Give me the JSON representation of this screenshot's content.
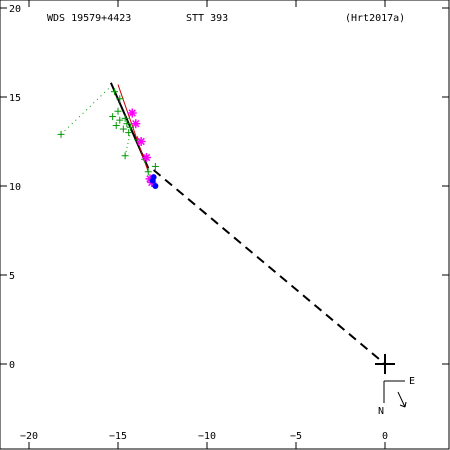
{
  "chart_data": {
    "type": "scatter",
    "header": {
      "left": "WDS 19579+4423",
      "center": "STT 393",
      "right": "(Hrt2017a)"
    },
    "x_axis": {
      "range": [
        -22,
        3.5
      ],
      "ticks": [
        -20,
        -15,
        -10,
        -5,
        0
      ],
      "tick_labels": [
        "−20",
        "−15",
        "−10",
        "−5",
        "0"
      ]
    },
    "y_axis": {
      "range": [
        -4,
        20
      ],
      "ticks": [
        0,
        5,
        10,
        15,
        20
      ],
      "tick_labels": [
        "0",
        "5",
        "10",
        "15",
        "20"
      ]
    },
    "compass": {
      "east_label": "E",
      "north_label": "N"
    },
    "colors": {
      "micrometric": "#009900",
      "speckle": "#ff00ff",
      "recent": "#0000ff",
      "orbit": "#cc0000",
      "fit": "#000000"
    },
    "series": [
      {
        "marker": "plus",
        "color": "#009900",
        "points": [
          [
            -18.2,
            12.9
          ],
          [
            -15.2,
            15.3
          ],
          [
            -14.9,
            14.9
          ],
          [
            -15.0,
            14.2
          ],
          [
            -15.3,
            13.9
          ],
          [
            -14.6,
            13.8
          ],
          [
            -14.9,
            13.7
          ],
          [
            -14.5,
            13.5
          ],
          [
            -15.1,
            13.4
          ],
          [
            -14.3,
            13.3
          ],
          [
            -14.7,
            13.2
          ],
          [
            -14.4,
            13.0
          ],
          [
            -13.9,
            12.6
          ],
          [
            -14.6,
            11.7
          ],
          [
            -13.5,
            11.5
          ],
          [
            -12.9,
            11.1
          ],
          [
            -13.3,
            10.8
          ]
        ]
      },
      {
        "marker": "asterisk",
        "color": "#ff00ff",
        "points": [
          [
            -14.2,
            14.1
          ],
          [
            -14.0,
            13.5
          ],
          [
            -13.7,
            12.5
          ],
          [
            -13.4,
            11.6
          ],
          [
            -13.2,
            10.4
          ],
          [
            -13.1,
            10.2
          ]
        ]
      },
      {
        "marker": "dot",
        "color": "#0000ff",
        "points": [
          [
            -13.0,
            10.5
          ],
          [
            -13.05,
            10.3
          ],
          [
            -12.9,
            10.0
          ]
        ]
      }
    ],
    "primary": [
      0,
      0
    ]
  }
}
